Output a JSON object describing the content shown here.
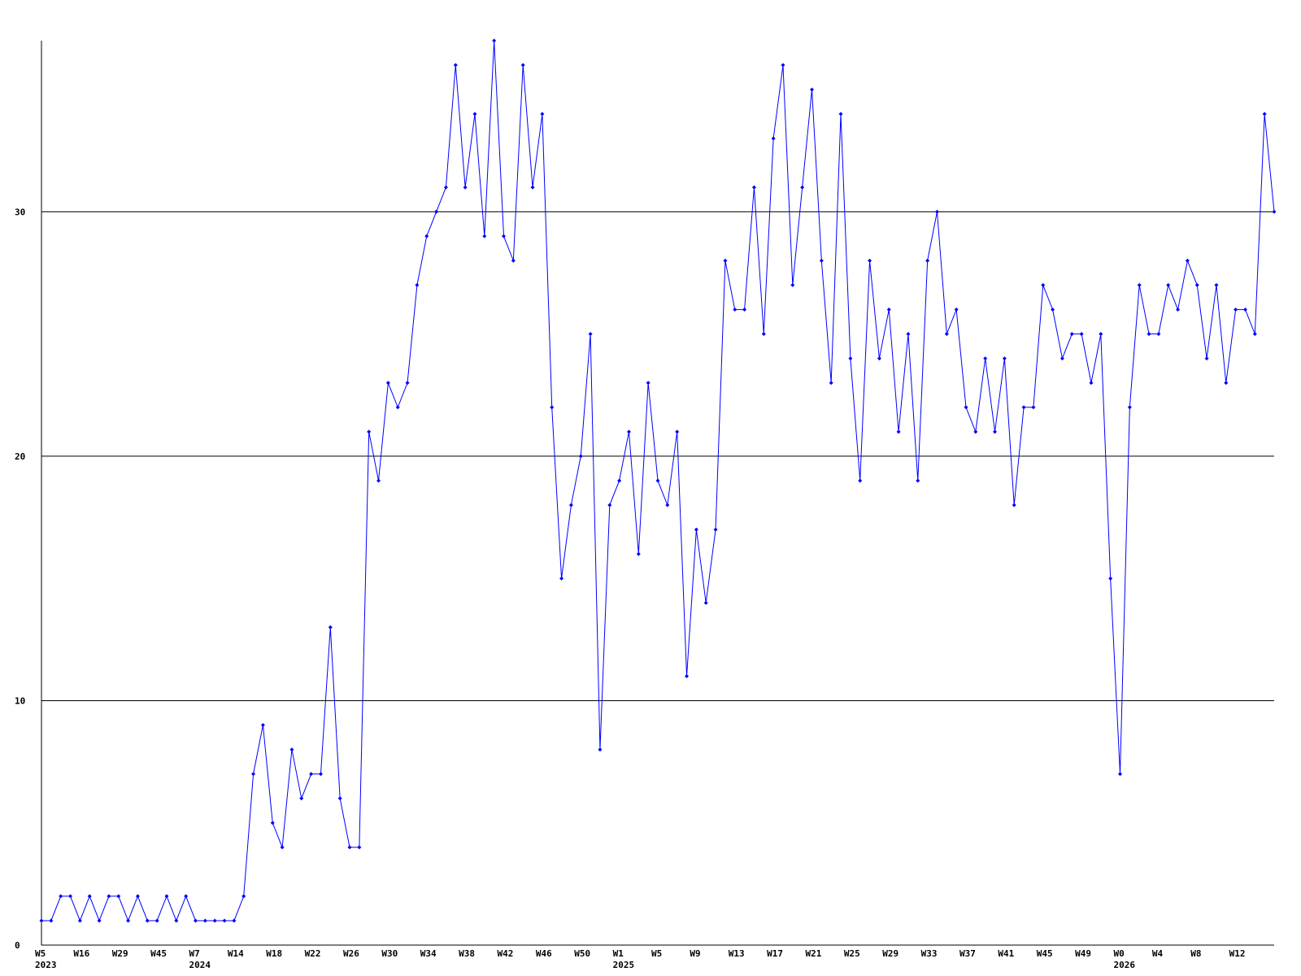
{
  "chart_data": {
    "type": "line",
    "categories": [
      "W5",
      null,
      null,
      null,
      "W16",
      null,
      null,
      null,
      "W29",
      null,
      null,
      null,
      "W45",
      null,
      null,
      null,
      "W7",
      null,
      null,
      null,
      "W14",
      null,
      null,
      null,
      "W18",
      null,
      null,
      null,
      "W22",
      null,
      null,
      null,
      "W26",
      null,
      null,
      null,
      "W30",
      null,
      null,
      null,
      "W34",
      null,
      null,
      null,
      "W38",
      null,
      null,
      null,
      "W42",
      null,
      null,
      null,
      "W46",
      null,
      null,
      null,
      "W50",
      null,
      null,
      null,
      "W1",
      null,
      null,
      null,
      "W5",
      null,
      null,
      null,
      "W9",
      null,
      null,
      null,
      "W13",
      null,
      null,
      null,
      "W17",
      null,
      null,
      null,
      "W21",
      null,
      null,
      null,
      "W25",
      null,
      null,
      null,
      "W29",
      null,
      null,
      null,
      "W33",
      null,
      null,
      null,
      "W37",
      null,
      null,
      null,
      "W41",
      null,
      null,
      null,
      "W45",
      null,
      null,
      null,
      "W49",
      null,
      null,
      null,
      "W0",
      null,
      null,
      null,
      "W4",
      null,
      null,
      null,
      "W8",
      null,
      null,
      null,
      "W12",
      null,
      null,
      null,
      null
    ],
    "category_years": [
      "2023",
      null,
      null,
      null,
      null,
      null,
      null,
      null,
      null,
      null,
      null,
      null,
      null,
      null,
      null,
      null,
      "2024",
      null,
      null,
      null,
      null,
      null,
      null,
      null,
      null,
      null,
      null,
      null,
      null,
      null,
      null,
      null,
      null,
      null,
      null,
      null,
      null,
      null,
      null,
      null,
      null,
      null,
      null,
      null,
      null,
      null,
      null,
      null,
      null,
      null,
      null,
      null,
      null,
      null,
      null,
      null,
      null,
      null,
      null,
      null,
      "2025",
      null,
      null,
      null,
      null,
      null,
      null,
      null,
      null,
      null,
      null,
      null,
      null,
      null,
      null,
      null,
      null,
      null,
      null,
      null,
      null,
      null,
      null,
      null,
      null,
      null,
      null,
      null,
      null,
      null,
      null,
      null,
      null,
      null,
      null,
      null,
      null,
      null,
      null,
      null,
      null,
      null,
      null,
      null,
      null,
      null,
      null,
      null,
      null,
      null,
      null,
      null,
      "2026",
      null,
      null,
      null,
      null,
      null,
      null,
      null,
      null,
      null,
      null,
      null,
      null,
      null,
      null,
      null,
      null
    ],
    "series": [
      {
        "color": "#0000ff",
        "values": [
          1,
          1,
          2,
          2,
          1,
          2,
          1,
          2,
          2,
          1,
          2,
          1,
          1,
          2,
          1,
          2,
          1,
          1,
          1,
          1,
          1,
          2,
          7,
          9,
          5,
          4,
          8,
          6,
          7,
          7,
          13,
          6,
          4,
          4,
          21,
          19,
          23,
          22,
          23,
          27,
          29,
          30,
          31,
          36,
          31,
          34,
          29,
          37,
          29,
          28,
          36,
          31,
          34,
          22,
          15,
          18,
          20,
          25,
          8,
          18,
          19,
          21,
          16,
          23,
          19,
          18,
          21,
          11,
          17,
          14,
          17,
          28,
          26,
          26,
          31,
          25,
          33,
          36,
          27,
          31,
          35,
          28,
          23,
          34,
          24,
          19,
          28,
          24,
          26,
          21,
          25,
          19,
          28,
          30,
          25,
          26,
          22,
          21,
          24,
          21,
          24,
          18,
          22,
          22,
          27,
          26,
          24,
          25,
          25,
          23,
          25,
          15,
          7,
          22,
          27,
          25,
          25,
          27,
          26,
          28,
          27,
          24,
          27,
          23,
          26,
          26,
          25,
          34,
          30
        ]
      }
    ],
    "ylim": [
      0,
      37
    ],
    "yticks": [
      0,
      10,
      20,
      30
    ],
    "grid": true
  }
}
